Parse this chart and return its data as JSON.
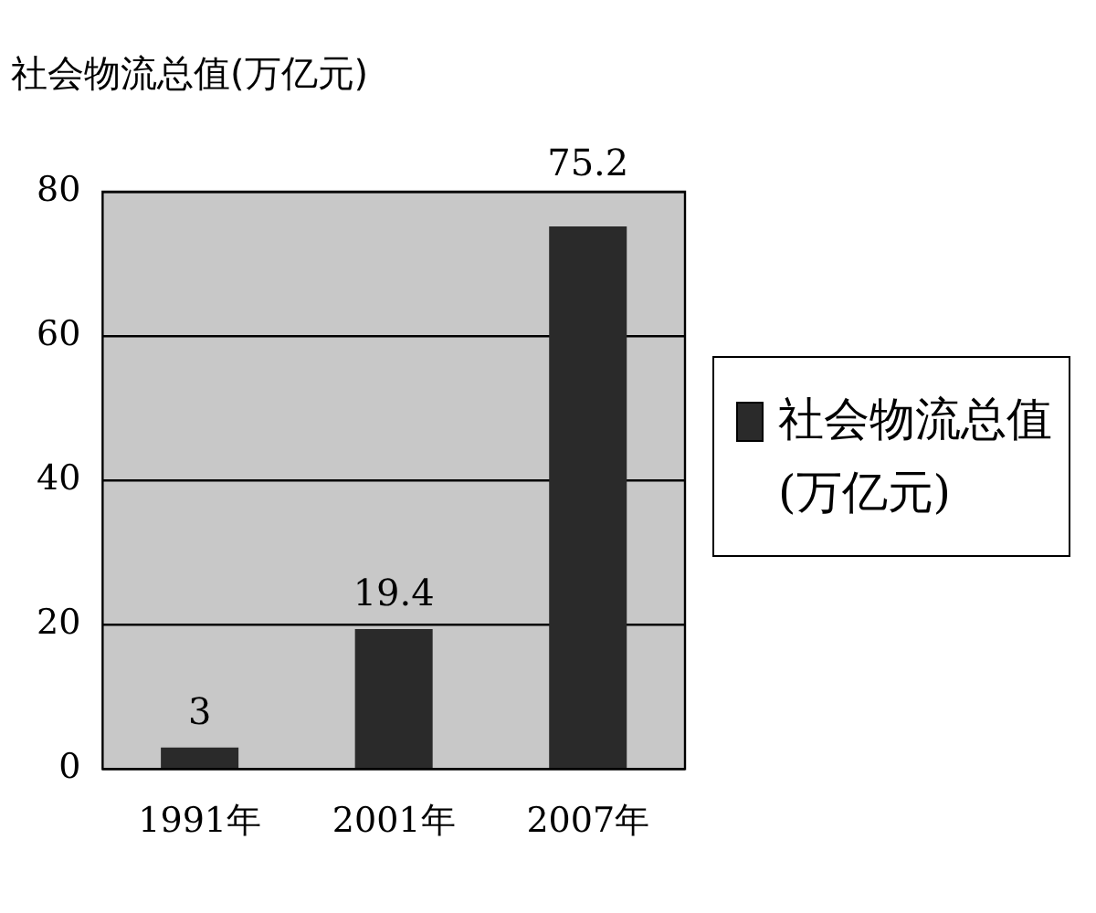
{
  "chart_data": {
    "type": "bar",
    "ylabel": "社会物流总值(万亿元)",
    "categories": [
      "1991年",
      "2001年",
      "2007年"
    ],
    "series": [
      {
        "name": "社会物流总值(万亿元)",
        "color": "#2a2a2a",
        "values": [
          3,
          19.4,
          75.2
        ]
      }
    ],
    "ylim": [
      0,
      80
    ],
    "yticks": [
      0,
      20,
      40,
      60,
      80
    ],
    "grid": "y",
    "legend": "right",
    "data_labels": true
  }
}
